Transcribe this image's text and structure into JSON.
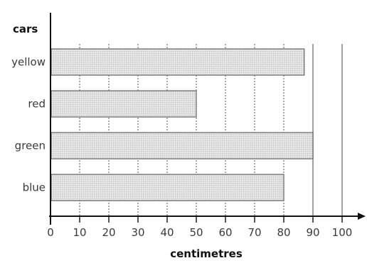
{
  "chart_data": {
    "type": "bar",
    "orientation": "horizontal",
    "title": "",
    "ylabel": "cars",
    "xlabel": "centimetres",
    "categories": [
      "yellow",
      "red",
      "green",
      "blue"
    ],
    "values": [
      87,
      50,
      90,
      80
    ],
    "xlim": [
      0,
      100
    ],
    "xticks": [
      0,
      10,
      20,
      30,
      40,
      50,
      60,
      70,
      80,
      90,
      100
    ],
    "grid": true,
    "bar_color": "#e0e0e0",
    "bar_edge_color": "#777777"
  }
}
